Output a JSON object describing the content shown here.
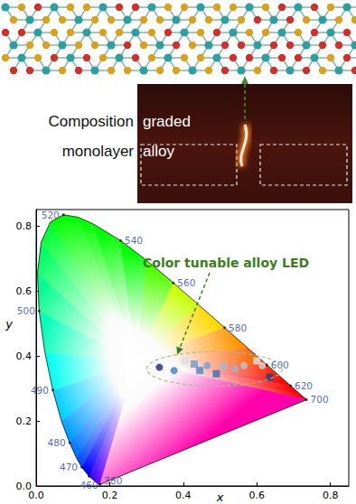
{
  "inset": {
    "left_text": [
      "Composition",
      "monolayer"
    ],
    "photo_text": [
      "graded",
      "alloy"
    ]
  },
  "chart_data": {
    "type": "scatter",
    "xlabel": "x",
    "ylabel": "y",
    "xlim": [
      0,
      0.85
    ],
    "ylim": [
      0,
      0.85
    ],
    "xticks": [
      {
        "value": 0,
        "label": "0.0"
      },
      0.2,
      0.4,
      0.6,
      0.8
    ],
    "yticks": [
      {
        "value": 0,
        "label": "0.0"
      },
      0.2,
      0.4,
      0.6,
      0.8
    ],
    "grid": false,
    "locus": {
      "x": [
        0.1741,
        0.1733,
        0.1714,
        0.1644,
        0.1566,
        0.144,
        0.1241,
        0.1096,
        0.0913,
        0.0687,
        0.0454,
        0.0235,
        0.0082,
        0.0039,
        0.0139,
        0.0389,
        0.0743,
        0.1142,
        0.1547,
        0.2296,
        0.3016,
        0.3731,
        0.4441,
        0.5125,
        0.5752,
        0.627,
        0.6658,
        0.6915,
        0.719,
        0.73,
        0.7347
      ],
      "y": [
        0.005,
        0.0048,
        0.0051,
        0.0109,
        0.0177,
        0.0297,
        0.0578,
        0.0868,
        0.1327,
        0.2007,
        0.295,
        0.4127,
        0.5384,
        0.6548,
        0.7502,
        0.812,
        0.8338,
        0.8262,
        0.8059,
        0.7543,
        0.6923,
        0.6245,
        0.5547,
        0.4866,
        0.4242,
        0.3725,
        0.334,
        0.3083,
        0.2809,
        0.27,
        0.2653
      ],
      "wavelength": [
        380,
        null,
        null,
        null,
        null,
        460,
        470,
        null,
        480,
        null,
        490,
        null,
        500,
        null,
        null,
        null,
        520,
        null,
        null,
        540,
        null,
        560,
        null,
        580,
        null,
        600,
        null,
        620,
        null,
        null,
        700
      ]
    },
    "series": [
      {
        "type": "scatter",
        "marker": "circle",
        "x": [
          0.335,
          0.375,
          0.465,
          0.54,
          0.565,
          0.615
        ],
        "y": [
          0.365,
          0.355,
          0.37,
          0.36,
          0.37,
          0.37
        ],
        "colors": [
          "#1b2a6b",
          "#3f7fc8",
          "#6f9fd6",
          "#9fb3c9",
          "#bcc6d1",
          "#cfd6de"
        ]
      },
      {
        "type": "scatter",
        "marker": "square",
        "x": [
          0.405,
          0.43,
          0.445,
          0.49,
          0.51,
          0.6,
          0.635
        ],
        "y": [
          0.385,
          0.375,
          0.355,
          0.345,
          0.37,
          0.385,
          0.335
        ],
        "colors": [
          "#d9dee6",
          "#6b9bd2",
          "#4d86c8",
          "#3a6fb3",
          "#a8b8cc",
          "#dfe3e8",
          "#233f80"
        ]
      }
    ],
    "annotation": {
      "text": "Color tunable alloy LED",
      "color": "#3c7d22"
    }
  }
}
